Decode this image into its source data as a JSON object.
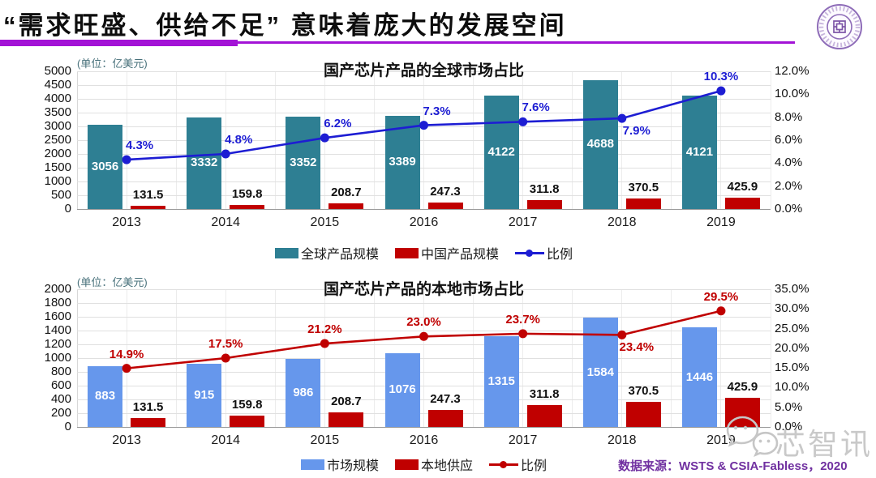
{
  "header": {
    "title": "“需求旺盛、供给不足” 意味着庞大的发展空间"
  },
  "footer": {
    "datasource": "数据来源：WSTS & CSIA-Fabless，2020",
    "watermark": "芯智讯"
  },
  "colors": {
    "accent_purple": "#A313D6",
    "datasource_purple": "#7030A0",
    "seal_purple": "#8E6CB8",
    "watermark_gray": "#c9c9c9"
  },
  "chart_data": [
    {
      "type": "bar",
      "title": "国产芯片产品的全球市场占比",
      "unit_label": "(单位：亿美元)",
      "categories": [
        "2013",
        "2014",
        "2015",
        "2016",
        "2017",
        "2018",
        "2019"
      ],
      "bar_series": [
        {
          "name": "全球产品规模",
          "color": "#2E7F93",
          "label_style": "inside-white",
          "values": [
            3056,
            3332,
            3352,
            3389,
            4122,
            4688,
            4121
          ]
        },
        {
          "name": "中国产品规模",
          "color": "#C00000",
          "label_style": "above-black",
          "values": [
            131.5,
            159.8,
            208.7,
            247.3,
            311.8,
            370.5,
            425.9
          ]
        }
      ],
      "line_series": {
        "name": "比例",
        "color": "#1D1DD3",
        "values": [
          4.3,
          4.8,
          6.2,
          7.3,
          7.6,
          7.9,
          10.3
        ],
        "labels": [
          "4.3%",
          "4.8%",
          "6.2%",
          "7.3%",
          "7.6%",
          "7.9%",
          "10.3%"
        ],
        "label_sides": [
          "above",
          "above",
          "above",
          "above",
          "above",
          "below",
          "above"
        ]
      },
      "y_axis": {
        "min": 0,
        "max": 5000,
        "step": 500
      },
      "y2_axis": {
        "min": 0,
        "max": 12,
        "step": 2,
        "suffix": "%"
      },
      "grid": true,
      "legend_position": "bottom"
    },
    {
      "type": "bar",
      "title": "国产芯片产品的本地市场占比",
      "unit_label": "(单位：亿美元)",
      "categories": [
        "2013",
        "2014",
        "2015",
        "2016",
        "2017",
        "2018",
        "2019"
      ],
      "bar_series": [
        {
          "name": "市场规模",
          "color": "#6697EC",
          "label_style": "inside-white",
          "values": [
            883,
            915,
            986,
            1076,
            1315,
            1584,
            1446
          ]
        },
        {
          "name": "本地供应",
          "color": "#C00000",
          "label_style": "above-black",
          "values": [
            131.5,
            159.8,
            208.7,
            247.3,
            311.8,
            370.5,
            425.9
          ]
        }
      ],
      "line_series": {
        "name": "比例",
        "color": "#C00000",
        "values": [
          14.9,
          17.5,
          21.2,
          23.0,
          23.7,
          23.4,
          29.5
        ],
        "labels": [
          "14.9%",
          "17.5%",
          "21.2%",
          "23.0%",
          "23.7%",
          "23.4%",
          "29.5%"
        ],
        "label_sides": [
          "above",
          "above",
          "above",
          "above",
          "above",
          "below",
          "above"
        ]
      },
      "y_axis": {
        "min": 0,
        "max": 2000,
        "step": 200
      },
      "y2_axis": {
        "min": 0,
        "max": 35,
        "step": 5,
        "suffix": "%"
      },
      "grid": true,
      "legend_position": "bottom"
    }
  ]
}
